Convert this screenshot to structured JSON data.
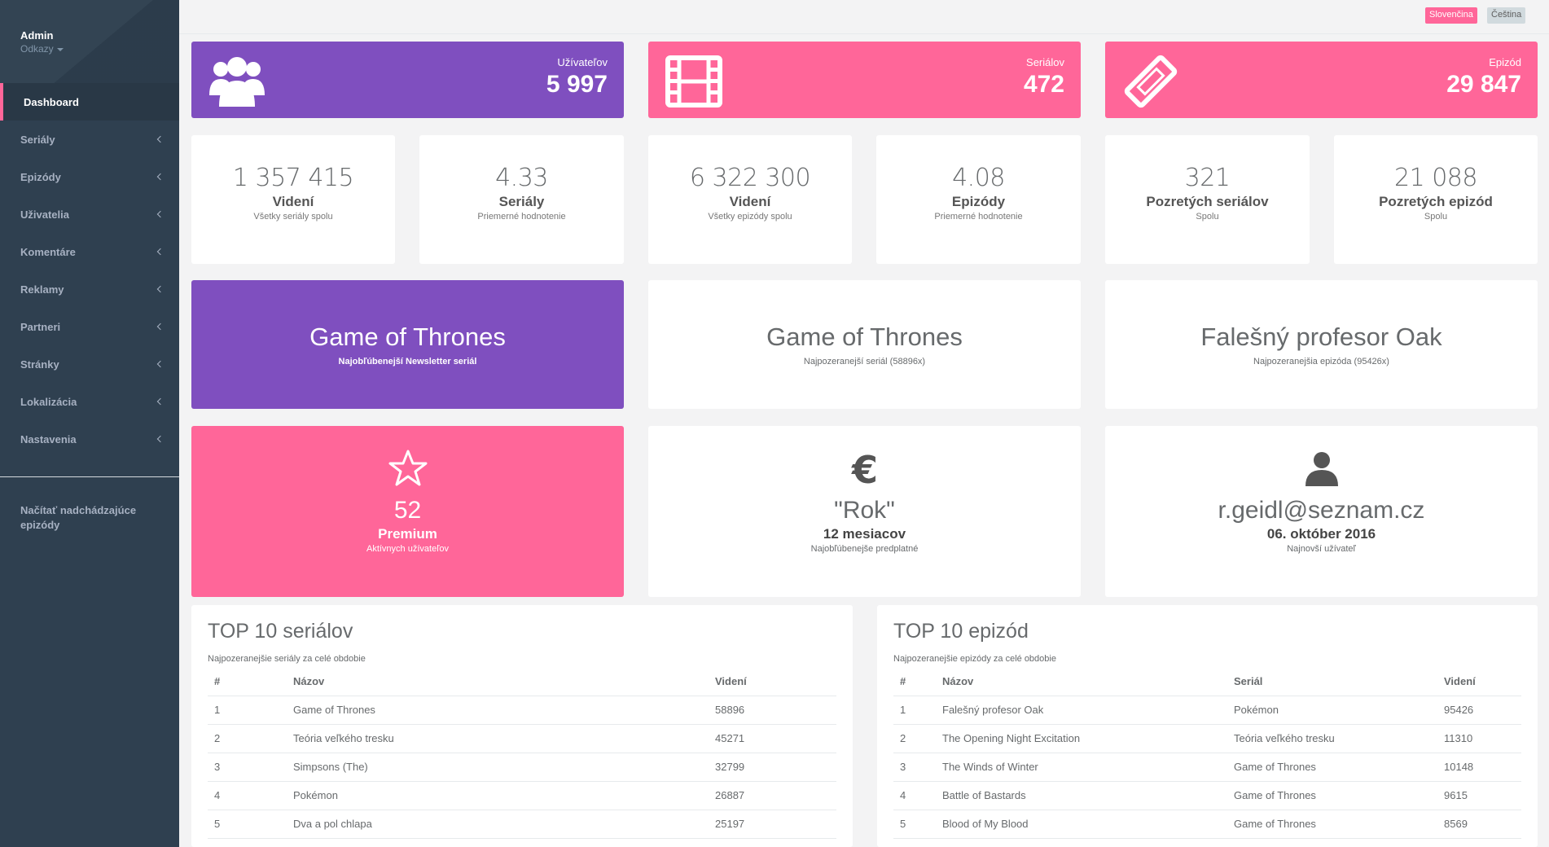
{
  "sidebar": {
    "profile": {
      "name": "Admin",
      "links_label": "Odkazy"
    },
    "items": [
      {
        "label": "Dashboard",
        "active": true
      },
      {
        "label": "Seriály"
      },
      {
        "label": "Epizódy"
      },
      {
        "label": "Uživatelia"
      },
      {
        "label": "Komentáre"
      },
      {
        "label": "Reklamy"
      },
      {
        "label": "Partneri"
      },
      {
        "label": "Stránky"
      },
      {
        "label": "Lokalizácia"
      },
      {
        "label": "Nastavenia"
      }
    ],
    "extra_link": "Načítať nadchádzajúce epizódy"
  },
  "topbar": {
    "languages": [
      {
        "label": "Slovenčina",
        "active": true
      },
      {
        "label": "Čeština",
        "active": false
      }
    ]
  },
  "top_stats": [
    {
      "label": "Užívateľov",
      "value": "5 997",
      "icon": "users-icon",
      "color": "#7f4fbf"
    },
    {
      "label": "Seriálov",
      "value": "472",
      "icon": "film-icon",
      "color": "#ff6699"
    },
    {
      "label": "Epizód",
      "value": "29 847",
      "icon": "ticket-icon",
      "color": "#ff6699"
    }
  ],
  "small_stats": [
    {
      "number": "1 357 415",
      "title": "Videní",
      "sub": "Všetky seriály spolu"
    },
    {
      "number": "4.33",
      "title": "Seriály",
      "sub": "Priemerné hodnotenie"
    },
    {
      "number": "6 322 300",
      "title": "Videní",
      "sub": "Všetky epizódy spolu"
    },
    {
      "number": "4.08",
      "title": "Epizódy",
      "sub": "Priemerné hodnotenie"
    },
    {
      "number": "321",
      "title": "Pozretých seriálov",
      "sub": "Spolu"
    },
    {
      "number": "21 088",
      "title": "Pozretých epizód",
      "sub": "Spolu"
    }
  ],
  "featured": [
    {
      "title": "Game of Thrones",
      "sub": "Najobľúbenejší Newsletter seriál"
    },
    {
      "title": "Game of Thrones",
      "sub": "Najpozeranejší seriál (58896x)"
    },
    {
      "title": "Falešný profesor Oak",
      "sub": "Najpozeranejšia epizóda (95426x)"
    }
  ],
  "info_boxes": [
    {
      "icon": "star-icon",
      "big": "52",
      "mid": "Premium",
      "sub": "Aktívnych užívateľov"
    },
    {
      "icon": "euro-icon",
      "big": "\"Rok\"",
      "mid": "12 mesiacov",
      "sub": "Najobľúbenejše predplatné"
    },
    {
      "icon": "user-icon",
      "big": "r.geidl@seznam.cz",
      "mid": "06. október 2016",
      "sub": "Najnovší užívateľ"
    }
  ],
  "top_series": {
    "title": "TOP 10 seriálov",
    "subtitle": "Najpozeranejšie seriály za celé obdobie",
    "columns": [
      "#",
      "Názov",
      "Videní"
    ],
    "rows": [
      [
        "1",
        "Game of Thrones",
        "58896"
      ],
      [
        "2",
        "Teória veľkého tresku",
        "45271"
      ],
      [
        "3",
        "Simpsons (The)",
        "32799"
      ],
      [
        "4",
        "Pokémon",
        "26887"
      ],
      [
        "5",
        "Dva a pol chlapa",
        "25197"
      ]
    ]
  },
  "top_episodes": {
    "title": "TOP 10 epizód",
    "subtitle": "Najpozeranejšie epizódy za celé obdobie",
    "columns": [
      "#",
      "Názov",
      "Seriál",
      "Videní"
    ],
    "rows": [
      [
        "1",
        "Falešný profesor Oak",
        "Pokémon",
        "95426"
      ],
      [
        "2",
        "The Opening Night Excitation",
        "Teória veľkého tresku",
        "11310"
      ],
      [
        "3",
        "The Winds of Winter",
        "Game of Thrones",
        "10148"
      ],
      [
        "4",
        "Battle of Bastards",
        "Game of Thrones",
        "9615"
      ],
      [
        "5",
        "Blood of My Blood",
        "Game of Thrones",
        "8569"
      ]
    ]
  }
}
